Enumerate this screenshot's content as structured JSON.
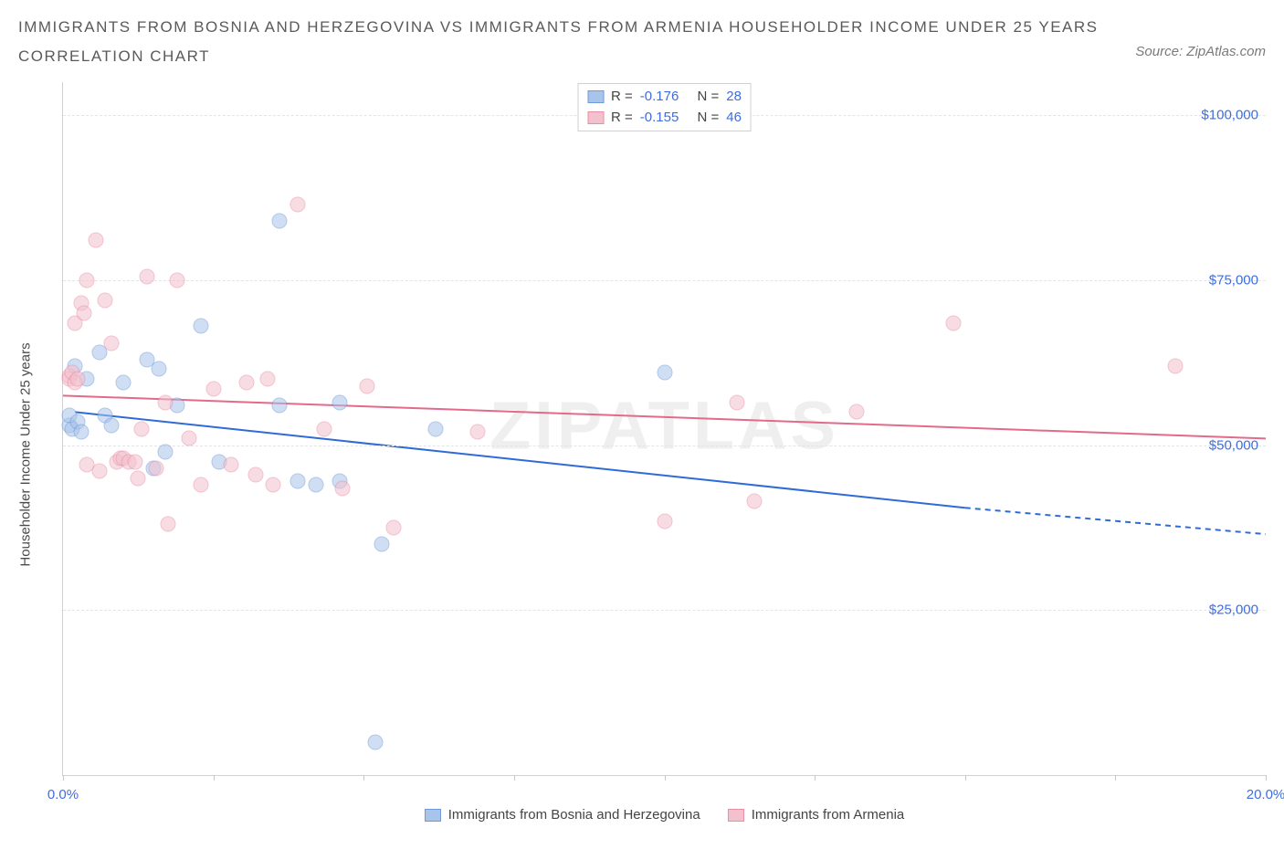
{
  "title_line1": "IMMIGRANTS FROM BOSNIA AND HERZEGOVINA VS IMMIGRANTS FROM ARMENIA HOUSEHOLDER INCOME UNDER 25 YEARS",
  "title_line2": "CORRELATION CHART",
  "source_prefix": "Source: ",
  "source_name": "ZipAtlas.com",
  "watermark": "ZIPATLAS",
  "ylabel": "Householder Income Under 25 years",
  "chart": {
    "type": "scatter",
    "xlim": [
      0,
      20
    ],
    "ylim": [
      0,
      105000
    ],
    "x_ticks": [
      0,
      2.5,
      5,
      7.5,
      10,
      12.5,
      15,
      17.5,
      20
    ],
    "x_tick_labels": {
      "0": "0.0%",
      "20": "20.0%"
    },
    "y_gridlines": [
      25000,
      50000,
      75000,
      100000
    ],
    "y_tick_labels": {
      "25000": "$25,000",
      "50000": "$50,000",
      "75000": "$75,000",
      "100000": "$100,000"
    },
    "background_color": "#ffffff",
    "grid_color": "#e4e4e4",
    "marker_radius": 8.5,
    "marker_opacity": 0.55,
    "series": [
      {
        "name": "Immigrants from Bosnia and Herzegovina",
        "color_fill": "#a9c4ea",
        "color_stroke": "#6f9ad8",
        "line_color": "#2f6bd6",
        "line_width": 2,
        "r": "-0.176",
        "n": "28",
        "trend": {
          "x1": 0.2,
          "y1": 55000,
          "x2": 15,
          "y2": 40500,
          "dash_x2": 20,
          "dash_y2": 36500
        },
        "points": [
          [
            0.1,
            53000
          ],
          [
            0.1,
            54500
          ],
          [
            0.15,
            52500
          ],
          [
            0.2,
            62000
          ],
          [
            0.25,
            53500
          ],
          [
            0.3,
            52000
          ],
          [
            0.4,
            60000
          ],
          [
            0.6,
            64000
          ],
          [
            0.7,
            54500
          ],
          [
            0.8,
            53000
          ],
          [
            1.0,
            59500
          ],
          [
            1.4,
            63000
          ],
          [
            1.5,
            46500
          ],
          [
            1.6,
            61500
          ],
          [
            1.7,
            49000
          ],
          [
            1.9,
            56000
          ],
          [
            2.3,
            68000
          ],
          [
            2.6,
            47500
          ],
          [
            3.6,
            84000
          ],
          [
            3.6,
            56000
          ],
          [
            3.9,
            44500
          ],
          [
            4.2,
            44000
          ],
          [
            4.6,
            44500
          ],
          [
            4.6,
            56500
          ],
          [
            5.2,
            5000
          ],
          [
            5.3,
            35000
          ],
          [
            6.2,
            52500
          ],
          [
            10.0,
            61000
          ]
        ]
      },
      {
        "name": "Immigrants from Armenia",
        "color_fill": "#f3c1cd",
        "color_stroke": "#e88fa6",
        "line_color": "#e26a8b",
        "line_width": 2,
        "r": "-0.155",
        "n": "46",
        "trend": {
          "x1": 0,
          "y1": 57500,
          "x2": 20,
          "y2": 51000
        },
        "points": [
          [
            0.1,
            60500
          ],
          [
            0.1,
            60000
          ],
          [
            0.15,
            61000
          ],
          [
            0.2,
            59500
          ],
          [
            0.2,
            68500
          ],
          [
            0.25,
            60000
          ],
          [
            0.3,
            71500
          ],
          [
            0.35,
            70000
          ],
          [
            0.4,
            47000
          ],
          [
            0.4,
            75000
          ],
          [
            0.55,
            81000
          ],
          [
            0.6,
            46000
          ],
          [
            0.7,
            72000
          ],
          [
            0.8,
            65500
          ],
          [
            0.9,
            47500
          ],
          [
            0.95,
            48000
          ],
          [
            1.0,
            48000
          ],
          [
            1.1,
            47500
          ],
          [
            1.2,
            47500
          ],
          [
            1.25,
            45000
          ],
          [
            1.3,
            52500
          ],
          [
            1.4,
            75500
          ],
          [
            1.55,
            46500
          ],
          [
            1.7,
            56500
          ],
          [
            1.75,
            38000
          ],
          [
            1.9,
            75000
          ],
          [
            2.1,
            51000
          ],
          [
            2.3,
            44000
          ],
          [
            2.5,
            58500
          ],
          [
            2.8,
            47000
          ],
          [
            3.05,
            59500
          ],
          [
            3.2,
            45500
          ],
          [
            3.4,
            60000
          ],
          [
            3.5,
            44000
          ],
          [
            3.9,
            86500
          ],
          [
            4.35,
            52500
          ],
          [
            4.65,
            43500
          ],
          [
            5.05,
            59000
          ],
          [
            5.5,
            37500
          ],
          [
            6.9,
            52000
          ],
          [
            10.0,
            38500
          ],
          [
            11.2,
            56500
          ],
          [
            11.5,
            41500
          ],
          [
            13.2,
            55000
          ],
          [
            14.8,
            68500
          ],
          [
            18.5,
            62000
          ]
        ]
      }
    ]
  },
  "stat_legend": {
    "r_label": "R =",
    "n_label": "N ="
  }
}
